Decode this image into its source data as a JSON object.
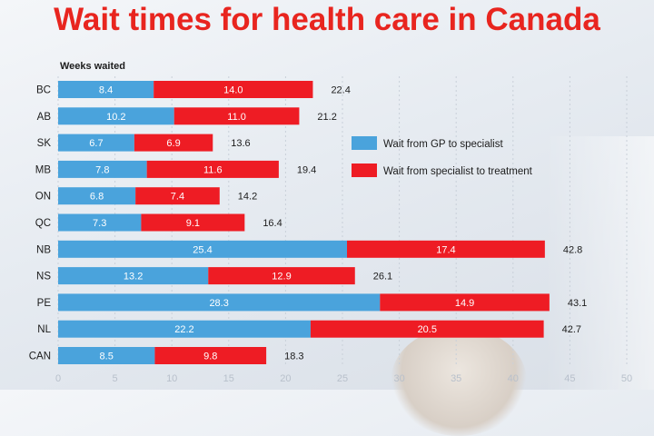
{
  "chart_data": {
    "type": "bar",
    "stacked": true,
    "orientation": "horizontal",
    "title": "Wait times for health care in Canada",
    "ylabel": "Weeks waited",
    "categories": [
      "BC",
      "AB",
      "SK",
      "MB",
      "ON",
      "QC",
      "NB",
      "NS",
      "PE",
      "NL",
      "CAN"
    ],
    "series": [
      {
        "name": "Wait from GP to specialist",
        "color": "#4aa3dc",
        "values": [
          8.4,
          10.2,
          6.7,
          7.8,
          6.8,
          7.3,
          25.4,
          13.2,
          28.3,
          22.2,
          8.5
        ]
      },
      {
        "name": "Wait from specialist to treatment",
        "color": "#ee1c24",
        "values": [
          14.0,
          11.0,
          6.9,
          11.6,
          7.4,
          9.1,
          17.4,
          12.9,
          14.9,
          20.5,
          9.8
        ]
      }
    ],
    "totals": [
      "22.4",
      "21.2",
      "13.6",
      "19.4",
      "14.2",
      "16.4",
      "42.8",
      "26.1",
      "43.1",
      "42.7",
      "18.3"
    ],
    "x_ticks": [
      0,
      5,
      10,
      15,
      20,
      25,
      30,
      35,
      40,
      45,
      50
    ],
    "xlim": [
      0,
      50
    ],
    "grid": true,
    "legend_position": "right"
  }
}
